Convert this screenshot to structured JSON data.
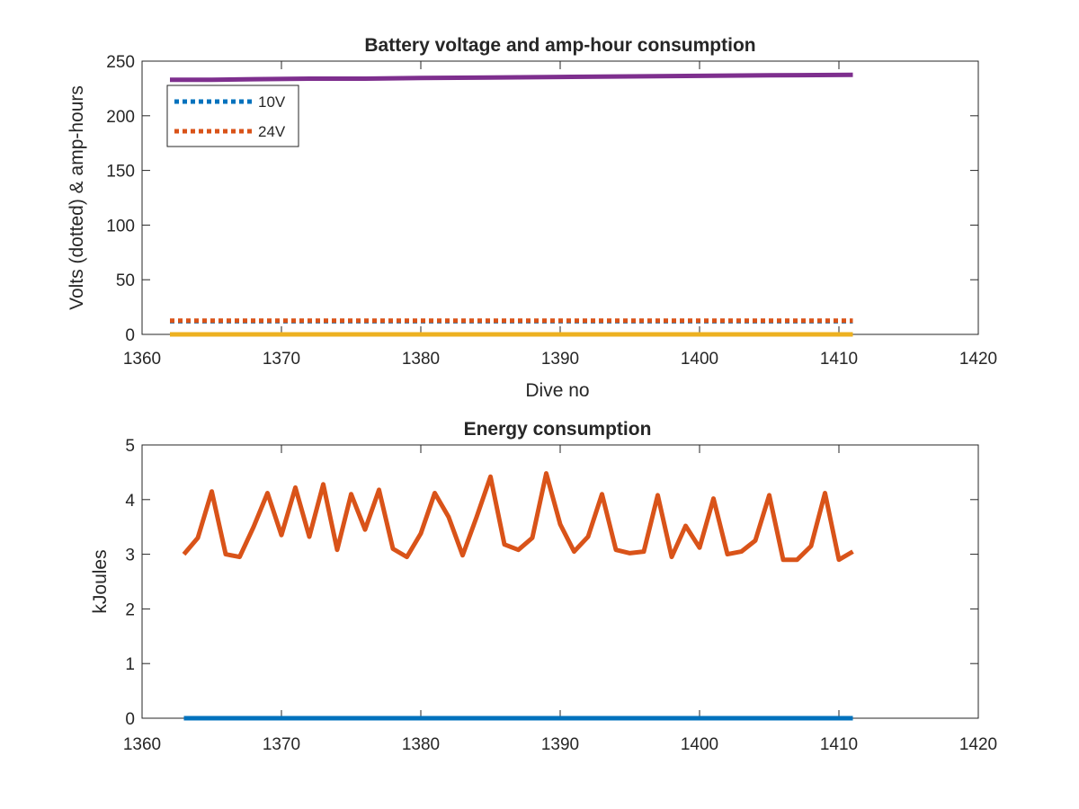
{
  "chart_data": [
    {
      "type": "line",
      "title": "Battery voltage and amp-hour consumption",
      "xlabel": "Dive no",
      "ylabel": "Volts (dotted) & amp-hours",
      "xlim": [
        1360,
        1420
      ],
      "ylim": [
        0,
        250
      ],
      "xticks": [
        1360,
        1370,
        1380,
        1390,
        1400,
        1410,
        1420
      ],
      "yticks": [
        0,
        50,
        100,
        150,
        200,
        250
      ],
      "grid": false,
      "legend_position": "top-left",
      "series": [
        {
          "name": "10V",
          "color": "#0072BD",
          "style": "dotted",
          "x": [
            1362,
            1411
          ],
          "y": [
            12,
            12
          ]
        },
        {
          "name": "24V",
          "color": "#D95319",
          "style": "dotted",
          "x": [
            1362,
            1411
          ],
          "y": [
            12.5,
            12.5
          ]
        },
        {
          "color": "#EDB120",
          "style": "solid",
          "x": [
            1362,
            1411
          ],
          "y": [
            0,
            0
          ]
        },
        {
          "color": "#7E2F8E",
          "style": "solid",
          "x": [
            1362,
            1365,
            1368,
            1372,
            1376,
            1380,
            1385,
            1390,
            1395,
            1400,
            1405,
            1411
          ],
          "y": [
            233,
            233,
            233.5,
            234,
            234,
            234.5,
            235,
            235.5,
            236,
            236.5,
            237,
            237.5
          ]
        }
      ]
    },
    {
      "type": "line",
      "title": "Energy consumption",
      "xlabel": "",
      "ylabel": "kJoules",
      "xlim": [
        1360,
        1420
      ],
      "ylim": [
        0,
        5
      ],
      "xticks": [
        1360,
        1370,
        1380,
        1390,
        1400,
        1410,
        1420
      ],
      "yticks": [
        0,
        1,
        2,
        3,
        4,
        5
      ],
      "grid": false,
      "series": [
        {
          "color": "#0072BD",
          "style": "solid",
          "x": [
            1363,
            1411
          ],
          "y": [
            0,
            0
          ]
        },
        {
          "color": "#D95319",
          "style": "solid",
          "x": [
            1363,
            1364,
            1365,
            1366,
            1367,
            1368,
            1369,
            1370,
            1371,
            1372,
            1373,
            1374,
            1375,
            1376,
            1377,
            1378,
            1379,
            1380,
            1381,
            1382,
            1383,
            1384,
            1385,
            1386,
            1387,
            1388,
            1389,
            1390,
            1391,
            1392,
            1393,
            1394,
            1395,
            1396,
            1397,
            1398,
            1399,
            1400,
            1401,
            1402,
            1403,
            1404,
            1405,
            1406,
            1407,
            1408,
            1409,
            1410,
            1411
          ],
          "y": [
            3.0,
            3.3,
            4.15,
            3.0,
            2.95,
            3.5,
            4.12,
            3.35,
            4.22,
            3.32,
            4.28,
            3.08,
            4.1,
            3.45,
            4.18,
            3.1,
            2.95,
            3.38,
            4.12,
            3.68,
            2.98,
            3.68,
            4.42,
            3.18,
            3.08,
            3.3,
            4.48,
            3.55,
            3.05,
            3.32,
            4.1,
            3.08,
            3.02,
            3.05,
            4.08,
            2.95,
            3.52,
            3.12,
            4.02,
            3.0,
            3.05,
            3.25,
            4.08,
            2.9,
            2.9,
            3.15,
            4.12,
            2.9,
            3.05
          ]
        }
      ]
    }
  ]
}
